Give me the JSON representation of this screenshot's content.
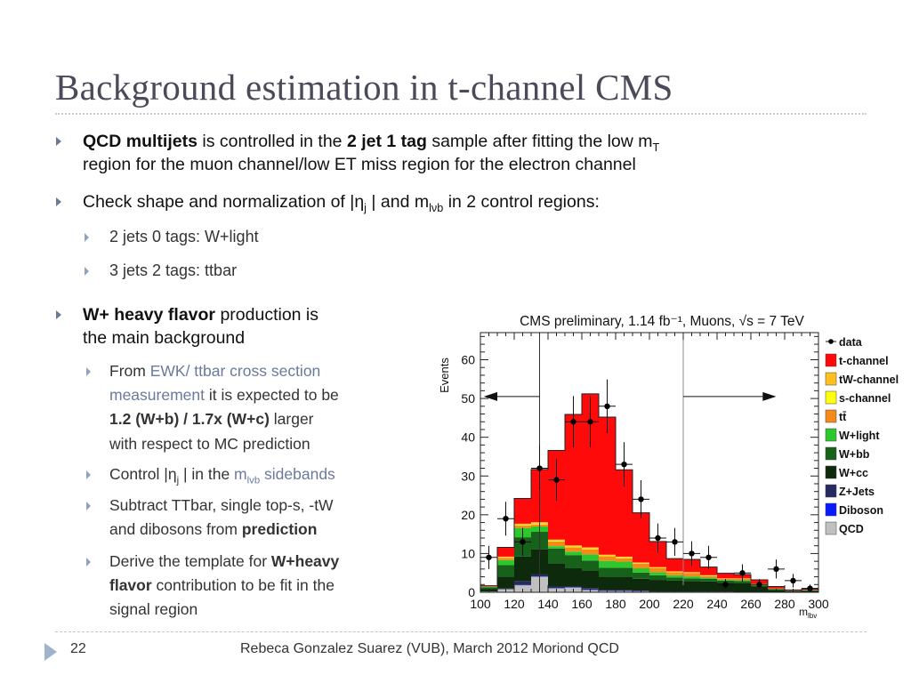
{
  "slide": {
    "title": "Background estimation in t-channel CMS",
    "page_number": "22",
    "footer": "Rebeca Gonzalez Suarez (VUB), March 2012 Moriond QCD"
  },
  "bullets": {
    "b1": {
      "bold1": "QCD multijets",
      "text1": " is controlled in the ",
      "bold2": "2 jet 1 tag",
      "text2": " sample after fitting the low m",
      "sub": "T",
      "line2": "region for the muon channel/low ET miss region for the electron channel"
    },
    "b2": {
      "text1": "Check shape and normalization of |η",
      "sub1": "j",
      "text2": " | and m",
      "sub2": "lνb",
      "text3": " in 2 control regions:"
    },
    "b2_sub": [
      "2 jets 0 tags: W+light",
      "3 jets 2 tags: ttbar"
    ],
    "b3": {
      "bold": "W+ heavy flavor",
      "text": " production is",
      "line2": "the main background"
    },
    "b3_sub": {
      "s1": {
        "t1": "From ",
        "link": "EWK/ ttbar cross section",
        "link2": "measurement",
        "t2": " it is expected to be",
        "bold": "1.2 (W+b) / 1.7x (W+c)",
        "t3": " larger",
        "line4": "with respect to MC prediction"
      },
      "s2": {
        "t1": "Control |η",
        "sub1": "j",
        "t2": " | in the ",
        "link1": "m",
        "linksub": "lvb",
        "link2": " sidebands"
      },
      "s3": {
        "t1": "Subtract TTbar, single top-s, -tW",
        "t2": "and dibosons from ",
        "bold": "prediction"
      },
      "s4": {
        "t1": "Derive the template for ",
        "bold1": "W+heavy",
        "bold2": "flavor",
        "t2": " contribution to be fit in the",
        "t3": "signal region"
      }
    }
  },
  "chart_data": {
    "type": "bar",
    "stacked": true,
    "title": "CMS preliminary, 1.14 fb⁻¹, Muons, √s = 7 TeV",
    "xlabel": "m_lbv",
    "ylabel": "Events",
    "xlim": [
      100,
      300
    ],
    "ylim": [
      0,
      67
    ],
    "x_ticks": [
      100,
      120,
      140,
      160,
      180,
      200,
      220,
      240,
      260,
      280,
      300
    ],
    "y_ticks": [
      0,
      10,
      20,
      30,
      40,
      50,
      60
    ],
    "bin_edges": [
      100,
      110,
      120,
      130,
      140,
      150,
      160,
      170,
      180,
      190,
      200,
      210,
      220,
      230,
      240,
      250,
      260,
      270,
      280,
      290,
      300
    ],
    "series": [
      {
        "name": "QCD",
        "color": "#c0c0c0",
        "values": [
          0.2,
          0.8,
          1.8,
          4.0,
          1.0,
          1.2,
          0.6,
          0.3,
          0.3,
          0.2,
          0.1,
          0.1,
          0.1,
          0.1,
          0.1,
          0.1,
          0.0,
          0.0,
          0.0,
          0.0
        ]
      },
      {
        "name": "Diboson",
        "color": "#0a1aff",
        "values": [
          0.0,
          0.0,
          0.1,
          0.1,
          0.1,
          0.1,
          0.1,
          0.1,
          0.1,
          0.1,
          0.0,
          0.0,
          0.0,
          0.0,
          0.0,
          0.0,
          0.0,
          0.0,
          0.0,
          0.0
        ]
      },
      {
        "name": "Z+Jets",
        "color": "#262a60",
        "values": [
          0.0,
          0.2,
          1.0,
          0.5,
          0.4,
          0.2,
          0.4,
          0.2,
          0.2,
          0.1,
          0.1,
          0.1,
          0.1,
          0.1,
          0.1,
          0.0,
          0.0,
          0.0,
          0.0,
          0.0
        ]
      },
      {
        "name": "W+cc",
        "color": "#0d2a0d",
        "values": [
          0.6,
          3.0,
          6.3,
          6.5,
          6.0,
          4.7,
          4.5,
          3.3,
          3.3,
          3.1,
          3.0,
          2.8,
          2.7,
          2.6,
          2.2,
          2.2,
          1.5,
          0.6,
          0.3,
          0.4
        ]
      },
      {
        "name": "W+bb",
        "color": "#17611a",
        "values": [
          0.5,
          3.0,
          5.0,
          4.5,
          3.8,
          3.4,
          2.6,
          2.4,
          2.4,
          1.6,
          1.2,
          0.8,
          0.7,
          0.7,
          0.6,
          0.6,
          0.3,
          0.2,
          0.1,
          0.1
        ]
      },
      {
        "name": "W+light",
        "color": "#2ec82e",
        "values": [
          0.1,
          1.3,
          2.4,
          1.4,
          0.6,
          0.9,
          1.6,
          1.8,
          1.6,
          1.1,
          0.8,
          0.6,
          0.5,
          0.3,
          0.2,
          0.2,
          0.1,
          0.1,
          0.0,
          0.0
        ]
      },
      {
        "name": "tt̄",
        "color": "#f58a1a",
        "values": [
          0.1,
          0.6,
          0.6,
          0.5,
          1.2,
          1.1,
          1.3,
          1.2,
          0.9,
          1.2,
          1.0,
          0.8,
          0.9,
          0.4,
          0.3,
          0.4,
          0.2,
          0.1,
          0.0,
          0.1
        ]
      },
      {
        "name": "s-channel",
        "color": "#ffff10",
        "values": [
          0.0,
          0.1,
          0.2,
          0.2,
          0.2,
          0.2,
          0.2,
          0.2,
          0.2,
          0.1,
          0.1,
          0.1,
          0.1,
          0.1,
          0.0,
          0.0,
          0.0,
          0.0,
          0.0,
          0.0
        ]
      },
      {
        "name": "tW-channel",
        "color": "#ffc020",
        "values": [
          0.0,
          0.2,
          0.3,
          0.4,
          0.3,
          0.3,
          0.3,
          0.2,
          0.2,
          0.2,
          0.2,
          0.1,
          0.1,
          0.1,
          0.1,
          0.1,
          0.1,
          0.0,
          0.0,
          0.0
        ]
      },
      {
        "name": "t-channel",
        "color": "#ff0a0a",
        "values": [
          0.2,
          2.4,
          6.5,
          13.6,
          23.0,
          33.8,
          39.6,
          35.5,
          22.4,
          12.8,
          6.6,
          3.3,
          3.3,
          2.1,
          1.3,
          1.0,
          1.0,
          0.5,
          0.2,
          0.2
        ]
      }
    ],
    "data": {
      "name": "data",
      "x": [
        105,
        115,
        125,
        135,
        145,
        155,
        165,
        175,
        185,
        195,
        205,
        215,
        225,
        235,
        245,
        255,
        265,
        275,
        285,
        295
      ],
      "y": [
        9,
        19,
        13,
        32,
        29,
        44,
        44,
        48,
        33,
        24,
        14,
        13,
        10,
        9,
        2,
        5,
        2,
        6,
        3,
        1
      ]
    },
    "cut_lines": [
      135,
      220
    ],
    "legend": [
      "data",
      "t-channel",
      "tW-channel",
      "s-channel",
      "tt̄",
      "W+light",
      "W+bb",
      "W+cc",
      "Z+Jets",
      "Diboson",
      "QCD"
    ],
    "legend_placement": "right"
  }
}
